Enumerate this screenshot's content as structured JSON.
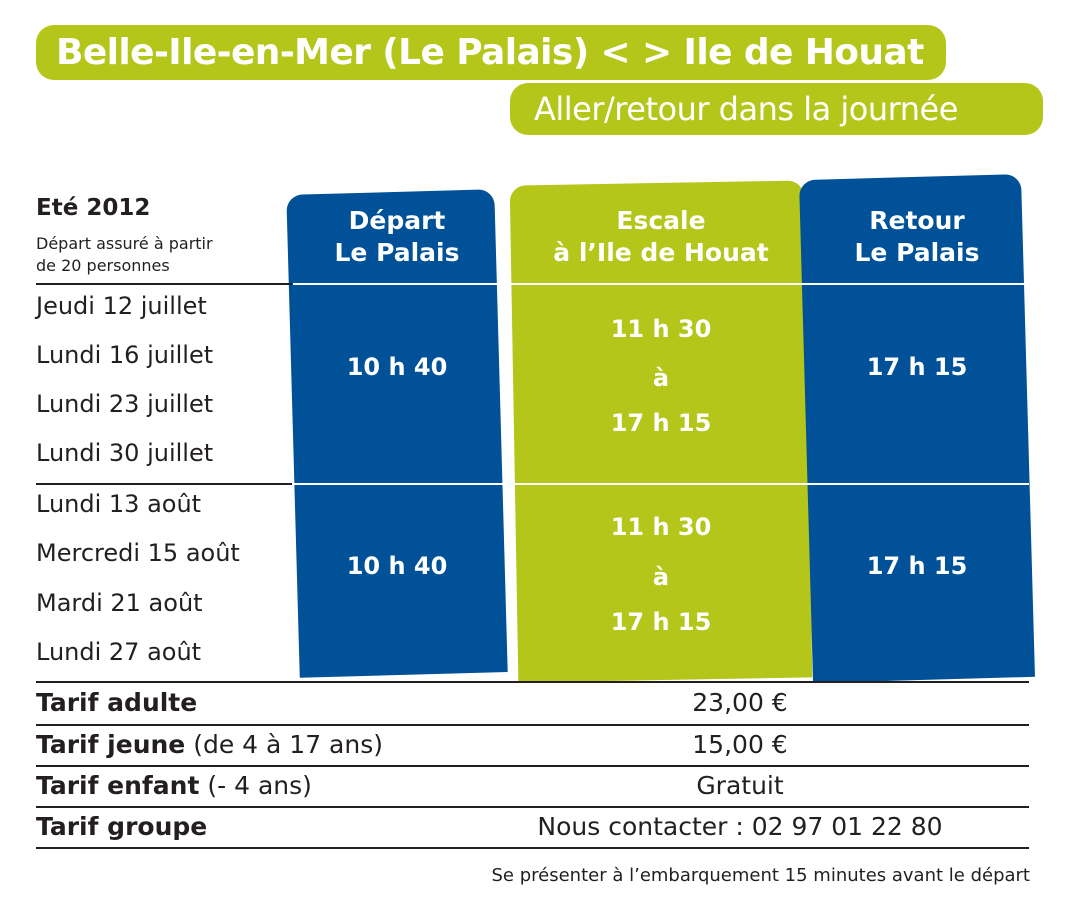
{
  "header": {
    "title": "Belle-Ile-en-Mer (Le Palais) < > Ile de Houat",
    "subtitle": "Aller/retour dans la journée"
  },
  "schedule": {
    "season": "Eté 2012",
    "note_line1": "Départ assuré à partir",
    "note_line2": "de 20 personnes",
    "columns": [
      {
        "line1": "Départ",
        "line2": "Le Palais"
      },
      {
        "line1": "Escale",
        "line2": "à l’Ile de Houat"
      },
      {
        "line1": "Retour",
        "line2": "Le Palais"
      }
    ],
    "groups": [
      {
        "dates": [
          "Jeudi 12 juillet",
          "Lundi 16 juillet",
          "Lundi 23 juillet",
          "Lundi 30 juillet"
        ],
        "depart": "10 h 40",
        "escale_from": "11 h 30",
        "escale_sep": "à",
        "escale_to": "17 h 15",
        "retour": "17 h 15"
      },
      {
        "dates": [
          "Lundi 13 août",
          "Mercredi 15 août",
          "Mardi 21 août",
          "Lundi 27 août"
        ],
        "depart": "10 h 40",
        "escale_from": "11 h 30",
        "escale_sep": "à",
        "escale_to": "17 h 15",
        "retour": "17 h 15"
      }
    ]
  },
  "tarifs": [
    {
      "label": "Tarif adulte",
      "detail": "",
      "value": "23,00 €"
    },
    {
      "label": "Tarif jeune",
      "detail": " (de 4 à 17 ans)",
      "value": "15,00 €"
    },
    {
      "label": "Tarif enfant",
      "detail": " (- 4 ans)",
      "value": "Gratuit"
    },
    {
      "label": "Tarif groupe",
      "detail": "",
      "value": "Nous contacter : 02 97 01 22 80"
    }
  ],
  "footer": "Se présenter à l’embarquement 15 minutes avant le départ",
  "colors": {
    "green": "#b5c61a",
    "blue": "#005197",
    "text": "#231f20"
  }
}
